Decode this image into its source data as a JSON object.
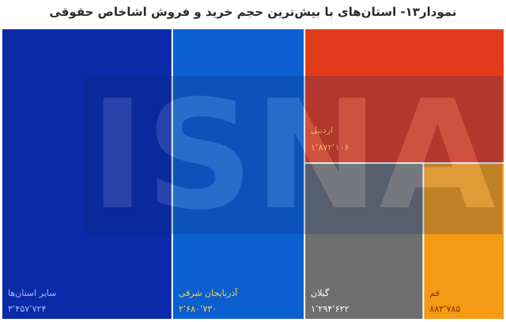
{
  "title": "نمودار۱۳- استان‌های با بیش‌ترین حجم خرید و فروش اشاخاص حقوقی",
  "watermark": "ISNA",
  "chart_data": {
    "type": "treemap",
    "title": "نمودار۱۳- استان‌های با بیش‌ترین حجم خرید و فروش اشاخاص حقوقی",
    "items": [
      {
        "label": "سایر استان‌ها",
        "value": 3457724,
        "value_text": "۳٬۴۵۷٬۷۲۴",
        "color": "#0a2aa8",
        "text_color": "#aab8ff"
      },
      {
        "label": "آذربایجان شرقی",
        "value": 2680730,
        "value_text": "۲٬۶۸۰٬۷۳۰",
        "color": "#0b5fd0",
        "text_color": "#ffd24a"
      },
      {
        "label": "اردبیل",
        "value": 1872106,
        "value_text": "۱٬۸۷۲٬۱۰۶",
        "color": "#e23b1b",
        "text_color": "#ffd24a"
      },
      {
        "label": "گیلان",
        "value": 1294622,
        "value_text": "۱٬۲۹۴٬۶۲۲",
        "color": "#6e6e6e",
        "text_color": "#ffffff"
      },
      {
        "label": "قم",
        "value": 883785,
        "value_text": "۸۸۳٬۷۸۵",
        "color": "#f59a12",
        "text_color": "#8a2b00"
      }
    ]
  }
}
